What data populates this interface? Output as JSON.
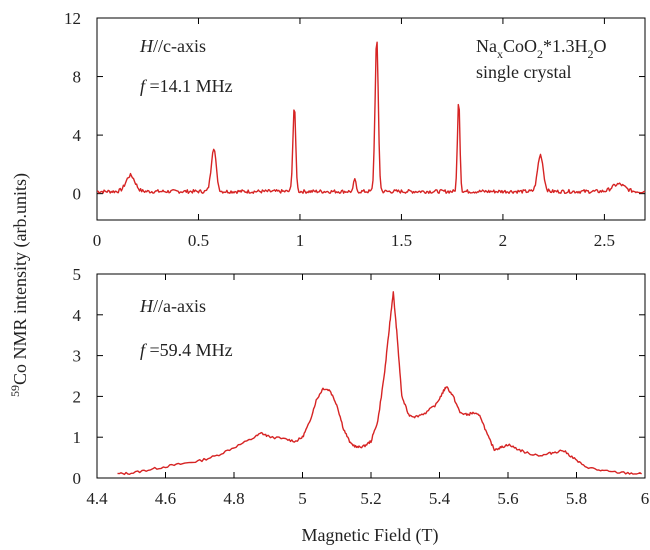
{
  "chart_data": [
    {
      "type": "line",
      "panel": "top",
      "xlim": [
        0,
        2.7
      ],
      "ylim": [
        -1.8,
        12
      ],
      "xticks": [
        0,
        0.5,
        1,
        1.5,
        2,
        2.5
      ],
      "yticks": [
        0,
        4,
        8,
        12
      ],
      "xtick_labels": [
        "0",
        "0.5",
        "1",
        "1.5",
        "2",
        "2.5"
      ],
      "ytick_labels": [
        "0",
        "4",
        "8",
        "12"
      ],
      "annotations": {
        "field_dir_italic": "H",
        "field_dir_rest": "//c-axis",
        "freq_italic": "f",
        "freq_rest": " =14.1 MHz",
        "sample_line1_parts": [
          "Na",
          "x",
          "CoO",
          "2",
          "*1.3H",
          "2",
          "O"
        ],
        "sample_line2": "single crystal"
      },
      "baseline": 0.15,
      "peaks": [
        {
          "x": 0.165,
          "height": 1.1,
          "width": 0.022
        },
        {
          "x": 0.575,
          "height": 3.0,
          "width": 0.012
        },
        {
          "x": 0.972,
          "height": 5.8,
          "width": 0.007
        },
        {
          "x": 1.27,
          "height": 0.9,
          "width": 0.005
        },
        {
          "x": 1.378,
          "height": 10.4,
          "width": 0.008
        },
        {
          "x": 1.782,
          "height": 6.4,
          "width": 0.006
        },
        {
          "x": 2.185,
          "height": 2.5,
          "width": 0.014
        },
        {
          "x": 2.57,
          "height": 0.5,
          "width": 0.03
        }
      ],
      "line_color": "#d62424"
    },
    {
      "type": "line",
      "panel": "bottom",
      "xlim": [
        4.4,
        6.0
      ],
      "ylim": [
        0,
        5
      ],
      "xticks": [
        4.4,
        4.6,
        4.8,
        5.0,
        5.2,
        5.4,
        5.6,
        5.8,
        6.0
      ],
      "yticks": [
        0,
        1,
        2,
        3,
        4,
        5
      ],
      "xtick_labels": [
        "4.4",
        "4.6",
        "4.8",
        "5",
        "5.2",
        "5.4",
        "5.6",
        "5.8",
        "6"
      ],
      "ytick_labels": [
        "0",
        "1",
        "2",
        "3",
        "4",
        "5"
      ],
      "annotations": {
        "field_dir_italic": "H",
        "field_dir_rest": "//a-axis",
        "freq_italic": "f",
        "freq_rest": " =59.4 MHz"
      },
      "x": [
        4.46,
        4.5,
        4.55,
        4.6,
        4.65,
        4.7,
        4.75,
        4.8,
        4.85,
        4.88,
        4.9,
        4.95,
        4.98,
        5.0,
        5.02,
        5.04,
        5.06,
        5.08,
        5.1,
        5.12,
        5.14,
        5.16,
        5.18,
        5.2,
        5.22,
        5.24,
        5.255,
        5.265,
        5.275,
        5.29,
        5.31,
        5.33,
        5.36,
        5.39,
        5.41,
        5.42,
        5.44,
        5.46,
        5.48,
        5.5,
        5.52,
        5.54,
        5.56,
        5.58,
        5.6,
        5.63,
        5.66,
        5.7,
        5.73,
        5.76,
        5.79,
        5.82,
        5.86,
        5.9,
        5.95,
        5.99
      ],
      "y": [
        0.1,
        0.12,
        0.2,
        0.28,
        0.35,
        0.42,
        0.55,
        0.75,
        0.95,
        1.1,
        1.02,
        0.95,
        0.9,
        1.0,
        1.35,
        1.9,
        2.2,
        2.15,
        1.8,
        1.2,
        0.85,
        0.75,
        0.78,
        0.9,
        1.4,
        2.6,
        3.8,
        4.55,
        3.6,
        2.0,
        1.55,
        1.5,
        1.6,
        1.8,
        2.1,
        2.25,
        2.0,
        1.6,
        1.55,
        1.6,
        1.5,
        1.05,
        0.7,
        0.75,
        0.82,
        0.7,
        0.6,
        0.55,
        0.62,
        0.68,
        0.5,
        0.3,
        0.2,
        0.15,
        0.12,
        0.1
      ],
      "line_color": "#d62424"
    }
  ],
  "labels": {
    "xlabel": "Magnetic Field (T)",
    "ylabel_sup": "59",
    "ylabel_rest": "Co NMR intensity (arb.units)"
  }
}
